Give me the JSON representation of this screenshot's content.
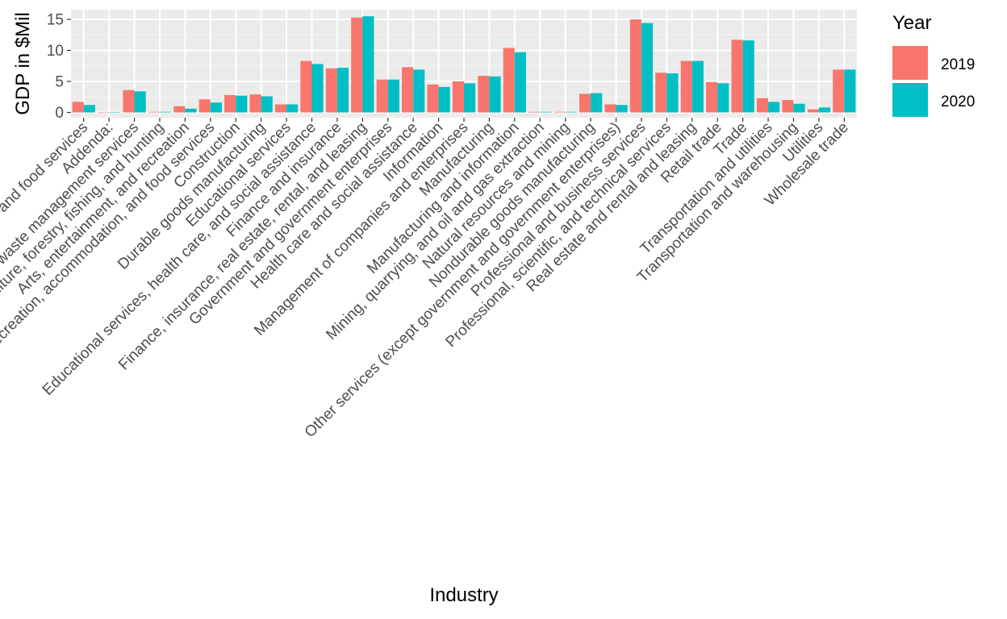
{
  "chart_data": {
    "type": "bar",
    "title": "",
    "xlabel": "Industry",
    "ylabel": "GDP in $Mil",
    "ylim": [
      -0.5,
      16.2
    ],
    "yticks": [
      0,
      5,
      10,
      15
    ],
    "grid": true,
    "legend": {
      "title": "Year",
      "position": "right"
    },
    "categories": [
      "Accommodation and food services",
      "Addenda:",
      "Administrative and waste management services",
      "Agriculture, forestry, fishing, and hunting",
      "Arts, entertainment, and recreation",
      "Arts, entertainment, recreation, accommodation, and food services",
      "Construction",
      "Durable goods manufacturing",
      "Educational services",
      "Educational services, health care, and social assistance",
      "Finance and insurance",
      "Finance, insurance, real estate, rental, and leasing",
      "Government and government enterprises",
      "Health care and social assistance",
      "Information",
      "Management of companies and enterprises",
      "Manufacturing",
      "Manufacturing and information",
      "Mining, quarrying, and oil and gas extraction",
      "Natural resources and mining",
      "Nondurable goods manufacturing",
      "Other services (except government and government enterprises)",
      "Professional and business services",
      "Professional, scientific, and technical services",
      "Real estate and rental and leasing",
      "Retail trade",
      "Trade",
      "Transportation and utilities",
      "Transportation and warehousing",
      "Utilities",
      "Wholesale trade"
    ],
    "series": [
      {
        "name": "2019",
        "color": "#F8766D",
        "values": [
          1.7,
          0,
          3.6,
          0.1,
          1.0,
          2.1,
          2.8,
          2.9,
          1.3,
          8.3,
          7.1,
          15.3,
          5.3,
          7.3,
          4.5,
          5.0,
          5.9,
          10.4,
          0.1,
          0.1,
          3.0,
          1.3,
          15.0,
          6.4,
          8.3,
          4.9,
          11.7,
          2.3,
          2.0,
          0.5,
          6.9
        ]
      },
      {
        "name": "2020",
        "color": "#00BFC4",
        "values": [
          1.2,
          0,
          3.4,
          0.1,
          0.6,
          1.6,
          2.7,
          2.6,
          1.3,
          7.8,
          7.2,
          15.5,
          5.3,
          6.9,
          4.1,
          4.7,
          5.8,
          9.7,
          0.1,
          0.1,
          3.1,
          1.2,
          14.4,
          6.3,
          8.3,
          4.7,
          11.6,
          1.7,
          1.4,
          0.8,
          6.9
        ]
      }
    ]
  }
}
